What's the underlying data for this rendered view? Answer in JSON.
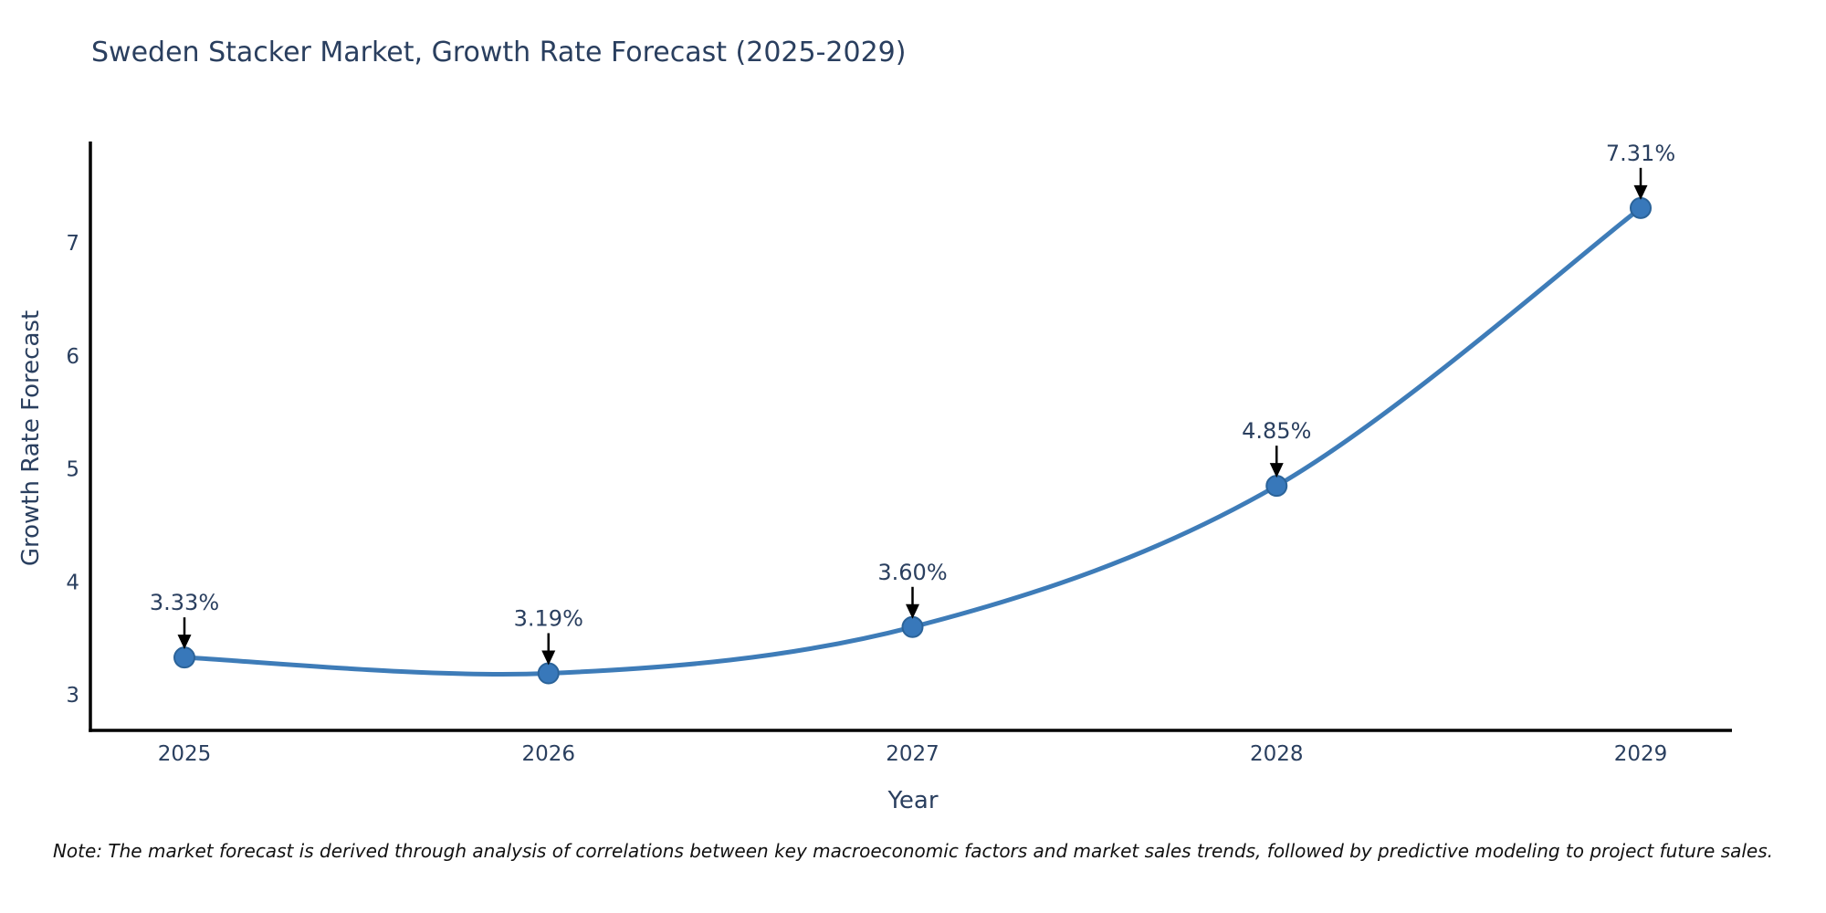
{
  "chart_data": {
    "type": "line",
    "title": "Sweden Stacker Market, Growth Rate Forecast (2025-2029)",
    "xlabel": "Year",
    "ylabel": "Growth Rate Forecast",
    "categories": [
      "2025",
      "2026",
      "2027",
      "2028",
      "2029"
    ],
    "series": [
      {
        "name": "Growth Rate Forecast",
        "values": [
          3.33,
          3.19,
          3.6,
          4.85,
          7.31
        ]
      }
    ],
    "point_labels": [
      "3.33%",
      "3.19%",
      "3.60%",
      "4.85%",
      "7.31%"
    ],
    "yticks": [
      3,
      4,
      5,
      6,
      7
    ],
    "ylim": [
      2.6,
      7.9
    ],
    "grid": false,
    "legend": "none",
    "line_shape": "spline",
    "colors": {
      "line": "#3e7cb8",
      "marker_fill": "#3878ba",
      "marker_edge": "#2b6399",
      "axis_line": "#000000",
      "tick_text": "#2a3f5f",
      "annotation_text": "#2a3f5f",
      "annotation_arrow": "#000000"
    }
  },
  "footnote": "Note: The market forecast is derived through analysis of correlations between key macroeconomic factors and market sales trends, followed by predictive modeling to project future sales."
}
